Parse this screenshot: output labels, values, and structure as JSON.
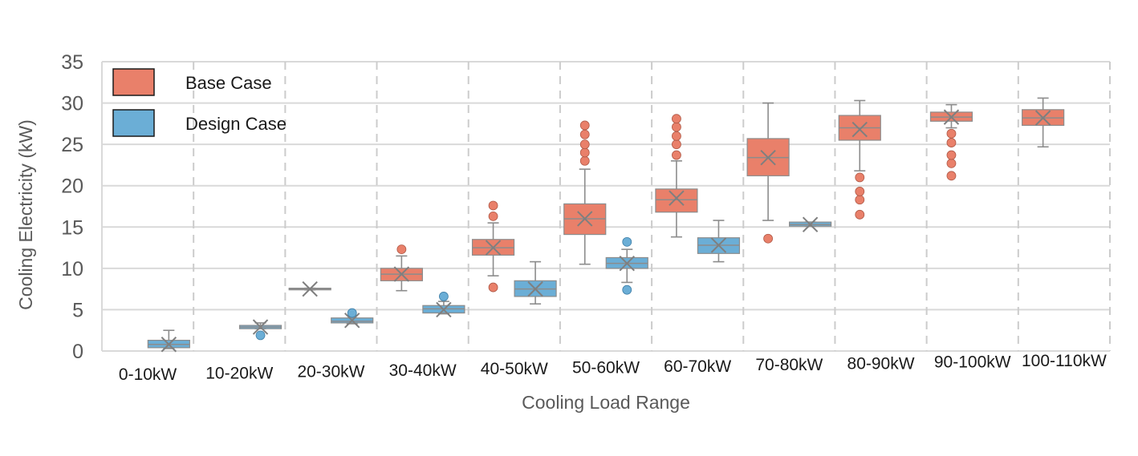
{
  "chart_data": {
    "type": "boxplot",
    "xlabel": "Cooling Load Range",
    "ylabel": "Cooling Electricity (kW)",
    "ylim": [
      0,
      35
    ],
    "yticks": [
      0,
      5,
      10,
      15,
      20,
      25,
      30,
      35
    ],
    "grid": "horizontal solid, vertical dashed",
    "legend_position": "top-left",
    "categories": [
      "0-10kW",
      "10-20kW",
      "20-30kW",
      "30-40kW",
      "40-50kW",
      "50-60kW",
      "60-70kW",
      "70-80kW",
      "80-90kW",
      "90-100kW",
      "100-110kW"
    ],
    "series": [
      {
        "name": "Base Case",
        "color": "#E9806A",
        "boxes": [
          null,
          null,
          {
            "whisker_low": 7.4,
            "q1": 7.4,
            "median": 7.5,
            "q3": 7.6,
            "whisker_high": 7.6,
            "mean": 7.5,
            "outliers": []
          },
          {
            "whisker_low": 7.3,
            "q1": 8.5,
            "median": 9.3,
            "q3": 10.0,
            "whisker_high": 11.5,
            "mean": 9.3,
            "outliers": [
              12.3
            ]
          },
          {
            "whisker_low": 9.1,
            "q1": 11.6,
            "median": 12.5,
            "q3": 13.5,
            "whisker_high": 15.5,
            "mean": 12.5,
            "outliers": [
              7.7,
              16.3,
              17.6
            ]
          },
          {
            "whisker_low": 10.5,
            "q1": 14.1,
            "median": 16.0,
            "q3": 17.8,
            "whisker_high": 22.0,
            "mean": 16.0,
            "outliers": [
              23.0,
              24.0,
              25.0,
              26.2,
              27.3
            ]
          },
          {
            "whisker_low": 13.8,
            "q1": 16.8,
            "median": 18.3,
            "q3": 19.6,
            "whisker_high": 23.0,
            "mean": 18.5,
            "outliers": [
              23.7,
              25.0,
              26.0,
              27.1,
              28.1
            ]
          },
          {
            "whisker_low": 15.8,
            "q1": 21.2,
            "median": 23.4,
            "q3": 25.7,
            "whisker_high": 30.0,
            "mean": 23.4,
            "outliers": [
              13.6
            ]
          },
          {
            "whisker_low": 21.8,
            "q1": 25.5,
            "median": 27.0,
            "q3": 28.5,
            "whisker_high": 30.3,
            "mean": 26.8,
            "outliers": [
              16.5,
              18.3,
              19.3,
              21.0
            ]
          },
          {
            "whisker_low": 27.0,
            "q1": 27.8,
            "median": 28.3,
            "q3": 28.9,
            "whisker_high": 29.8,
            "mean": 28.3,
            "outliers": [
              21.2,
              22.7,
              23.7,
              25.2,
              26.3
            ]
          },
          {
            "whisker_low": 24.7,
            "q1": 27.3,
            "median": 28.2,
            "q3": 29.2,
            "whisker_high": 30.6,
            "mean": 28.2,
            "outliers": []
          }
        ]
      },
      {
        "name": "Design Case",
        "color": "#6BAED6",
        "boxes": [
          {
            "whisker_low": 0.3,
            "q1": 0.4,
            "median": 0.8,
            "q3": 1.3,
            "whisker_high": 2.5,
            "mean": 0.8,
            "outliers": []
          },
          {
            "whisker_low": 2.7,
            "q1": 2.7,
            "median": 2.9,
            "q3": 3.1,
            "whisker_high": 3.4,
            "mean": 2.9,
            "outliers": [
              1.9
            ]
          },
          {
            "whisker_low": 3.3,
            "q1": 3.4,
            "median": 3.6,
            "q3": 4.0,
            "whisker_high": 4.3,
            "mean": 3.7,
            "outliers": [
              4.6
            ]
          },
          {
            "whisker_low": 4.5,
            "q1": 4.6,
            "median": 5.1,
            "q3": 5.5,
            "whisker_high": 6.0,
            "mean": 5.0,
            "outliers": [
              6.6
            ]
          },
          {
            "whisker_low": 5.7,
            "q1": 6.6,
            "median": 7.5,
            "q3": 8.5,
            "whisker_high": 10.8,
            "mean": 7.5,
            "outliers": []
          },
          {
            "whisker_low": 8.3,
            "q1": 10.0,
            "median": 10.6,
            "q3": 11.3,
            "whisker_high": 12.3,
            "mean": 10.6,
            "outliers": [
              7.4,
              13.2
            ]
          },
          {
            "whisker_low": 10.8,
            "q1": 11.8,
            "median": 12.8,
            "q3": 13.7,
            "whisker_high": 15.8,
            "mean": 12.8,
            "outliers": []
          },
          {
            "whisker_low": 15.1,
            "q1": 15.1,
            "median": 15.3,
            "q3": 15.6,
            "whisker_high": 15.6,
            "mean": 15.3,
            "outliers": []
          },
          null,
          null,
          null
        ]
      }
    ]
  }
}
